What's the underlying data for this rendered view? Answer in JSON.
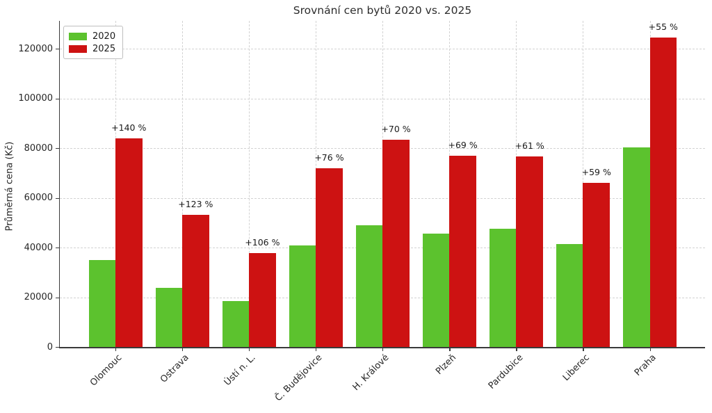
{
  "chart_data": {
    "type": "bar",
    "title": "Srovnání cen bytů 2020 vs. 2025",
    "xlabel": "",
    "ylabel": "Průměrná cena (Kč)",
    "categories": [
      "Olomouc",
      "Ostrava",
      "Ústí n. L.",
      "Č. Budějovice",
      "H. Králové",
      "Plzeň",
      "Pardubice",
      "Liberec",
      "Praha"
    ],
    "series": [
      {
        "name": "2020",
        "color": "#5cc22e",
        "values": [
          35000,
          23800,
          18400,
          40800,
          49000,
          45500,
          47700,
          41500,
          80300
        ]
      },
      {
        "name": "2025",
        "color": "#cd1212",
        "values": [
          84000,
          53100,
          37900,
          71800,
          83300,
          76900,
          76800,
          66000,
          124500
        ]
      }
    ],
    "annotations": [
      "+140 %",
      "+123 %",
      "+106 %",
      "+76 %",
      "+70 %",
      "+69 %",
      "+61 %",
      "+59 %",
      "+55 %"
    ],
    "y_ticks": [
      0,
      20000,
      40000,
      60000,
      80000,
      100000,
      120000
    ],
    "ylim": [
      0,
      131300
    ],
    "grid": "dashed, both axes",
    "legend_position": "upper left"
  }
}
